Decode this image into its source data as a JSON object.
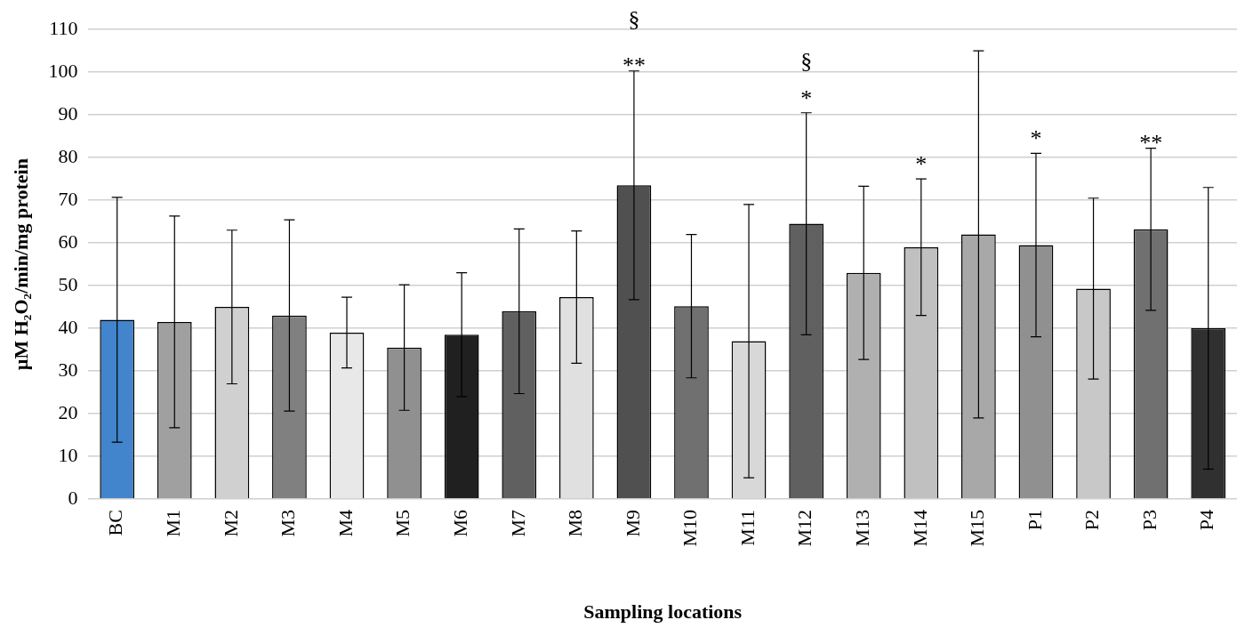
{
  "chart_data": {
    "type": "bar",
    "xlabel": "Sampling locations",
    "ylabel": "µM H₂O₂/min/mg protein",
    "categories": [
      "BC",
      "M1",
      "M2",
      "M3",
      "M4",
      "M5",
      "M6",
      "M7",
      "M8",
      "M9",
      "M10",
      "M11",
      "M12",
      "M13",
      "M14",
      "M15",
      "P1",
      "P2",
      "P3",
      "P4"
    ],
    "values": [
      42,
      41.5,
      45,
      43,
      39,
      35.5,
      38.5,
      44,
      47.3,
      73.5,
      45.2,
      37,
      64.5,
      53,
      59,
      62,
      59.5,
      49.3,
      63.2,
      40
    ],
    "errors": [
      28.7,
      24.8,
      18,
      22.4,
      8.3,
      14.7,
      14.5,
      19.3,
      15.5,
      26.8,
      16.8,
      32,
      26,
      20.3,
      16,
      43,
      21.5,
      21.2,
      19,
      33
    ],
    "colors": [
      "#4285cc",
      "#a0a0a0",
      "#d0d0d0",
      "#808080",
      "#e8e8e8",
      "#909090",
      "#202020",
      "#606060",
      "#e0e0e0",
      "#505050",
      "#707070",
      "#d8d8d8",
      "#606060",
      "#b0b0b0",
      "#c0c0c0",
      "#a8a8a8",
      "#909090",
      "#c8c8c8",
      "#707070",
      "#303030"
    ],
    "ylim": [
      0,
      110
    ],
    "yticks": [
      0,
      10,
      20,
      30,
      40,
      50,
      60,
      70,
      80,
      90,
      100,
      110
    ],
    "grid": "y",
    "legend": false,
    "annotations": [
      {
        "text": "**",
        "x": "M9",
        "y": 100.3
      },
      {
        "text": "§",
        "x": "M9",
        "y": 100.3
      },
      {
        "text": "*",
        "x": "M12",
        "y": 90.4
      },
      {
        "text": "§",
        "x": "M12",
        "y": 90.4
      },
      {
        "text": "*",
        "x": "M14",
        "y": 75
      },
      {
        "text": "*",
        "x": "P1",
        "y": 81
      },
      {
        "text": "**",
        "x": "P3",
        "y": 82
      }
    ]
  }
}
